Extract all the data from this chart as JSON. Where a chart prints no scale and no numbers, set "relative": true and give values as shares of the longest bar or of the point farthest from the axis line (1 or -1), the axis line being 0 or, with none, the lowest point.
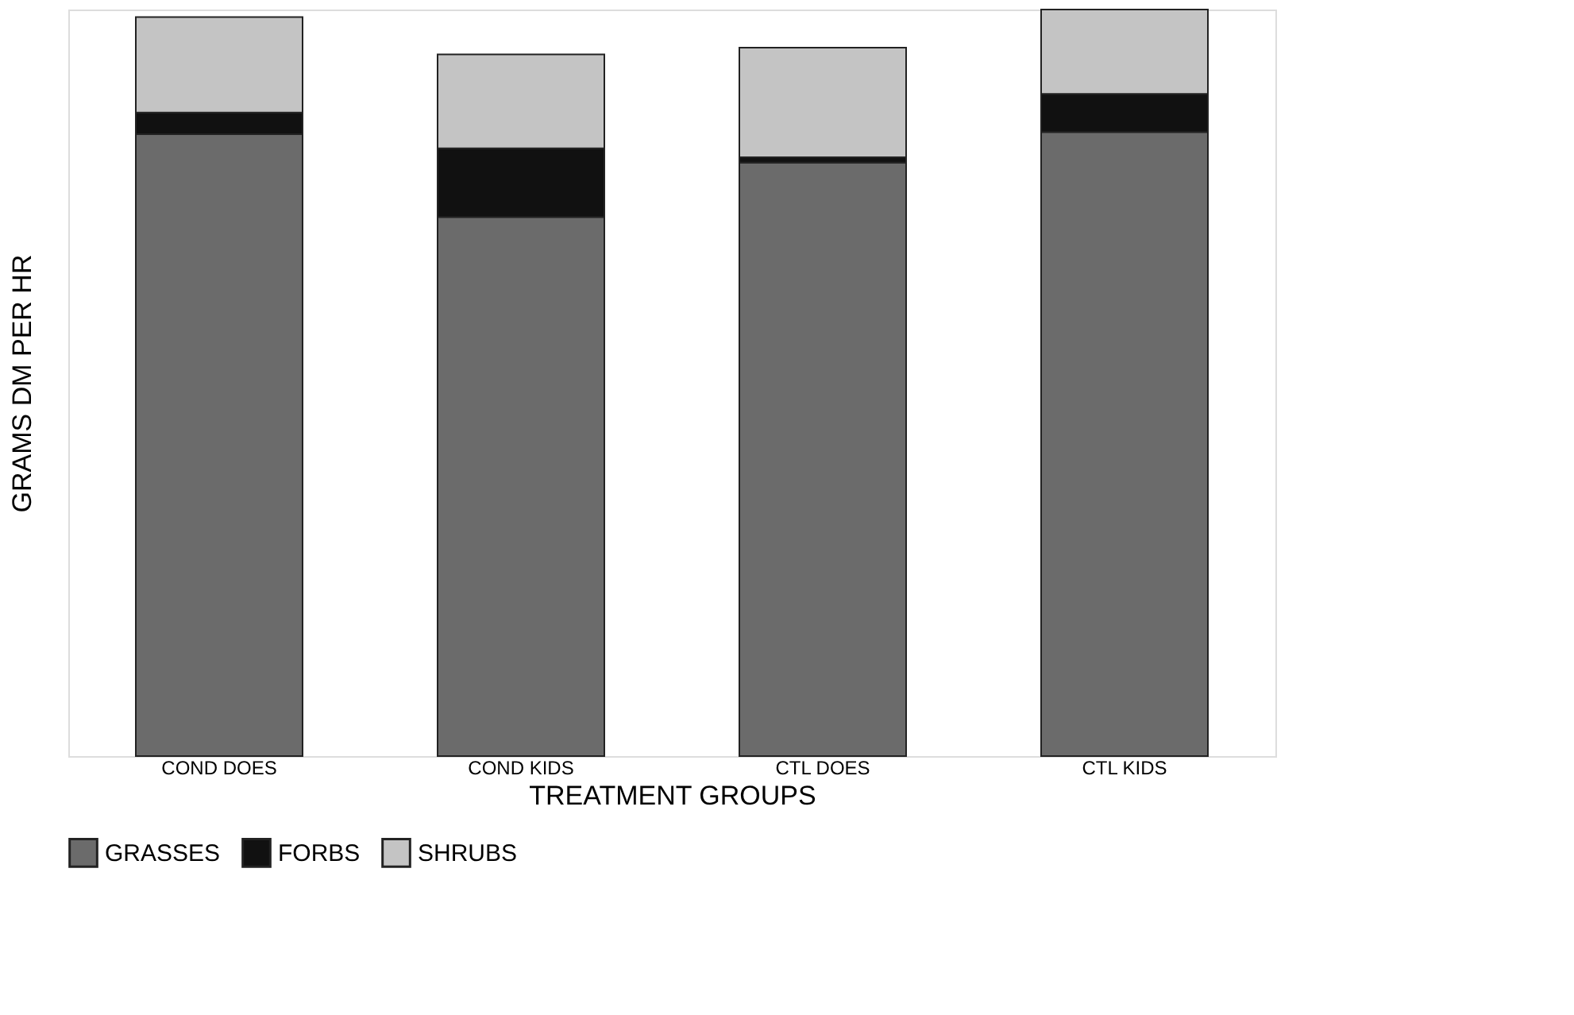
{
  "chart_data": {
    "type": "bar",
    "stacked": true,
    "relative": true,
    "xlabel": "TREATMENT GROUPS",
    "ylabel": "GRAMS DM PER HR",
    "categories": [
      "COND DOES",
      "COND KIDS",
      "CTL DOES",
      "CTL KIDS"
    ],
    "series": [
      {
        "name": "GRASSES",
        "color": "#6b6b6b",
        "values": [
          0.833,
          0.722,
          0.795,
          0.836
        ]
      },
      {
        "name": "FORBS",
        "color": "#111111",
        "values": [
          0.029,
          0.092,
          0.007,
          0.051
        ]
      },
      {
        "name": "SHRUBS",
        "color": "#c4c4c4",
        "values": [
          0.128,
          0.126,
          0.147,
          0.113
        ]
      }
    ],
    "legend": "bottom",
    "grid": false
  }
}
